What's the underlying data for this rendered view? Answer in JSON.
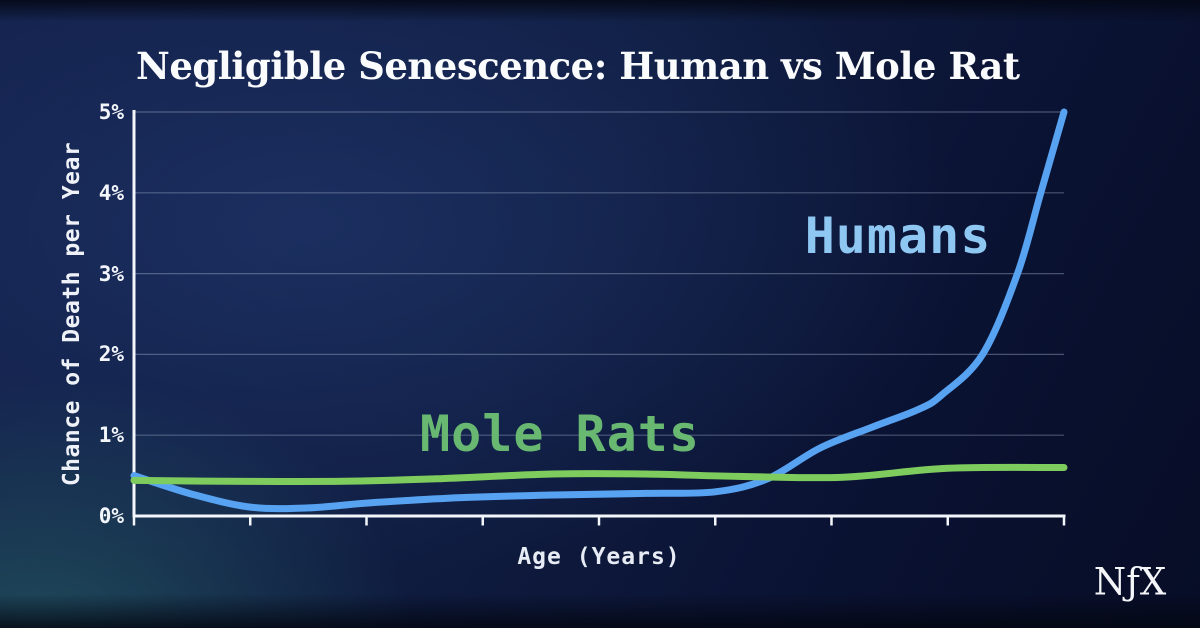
{
  "page": {
    "logo_text": "NƒX"
  },
  "chart_data": {
    "type": "line",
    "title": "Negligible Senescence: Human vs Mole Rat",
    "xlabel": "Age (Years)",
    "ylabel": "Chance of Death per Year",
    "x_range": [
      0,
      8
    ],
    "x_tick_count": 9,
    "x_tick_labels_visible": false,
    "ylim": [
      0,
      5
    ],
    "ytick_labels": [
      "0%",
      "1%",
      "2%",
      "3%",
      "4%",
      "5%"
    ],
    "grid": "horizontal",
    "legend": "inline-labels",
    "axis_color": "#f3f6fb",
    "grid_color": "rgba(168,182,208,0.4)",
    "series": [
      {
        "name": "Humans",
        "line_color": "#57a2f1",
        "label_color": "#8fc7f3",
        "x": [
          0,
          0.5,
          1.0,
          1.5,
          2.0,
          2.7,
          3.6,
          4.4,
          5.0,
          5.45,
          5.9,
          6.35,
          6.75,
          6.95,
          7.3,
          7.6,
          7.8,
          8.0
        ],
        "y": [
          0.5,
          0.27,
          0.11,
          0.1,
          0.16,
          0.22,
          0.26,
          0.28,
          0.3,
          0.46,
          0.84,
          1.1,
          1.32,
          1.5,
          2.0,
          3.0,
          4.0,
          5.0
        ]
      },
      {
        "name": "Mole Rats",
        "line_color": "#7ecb5e",
        "label_color": "#68b871",
        "x": [
          0,
          0.8,
          1.8,
          2.6,
          3.6,
          4.4,
          5.2,
          6.1,
          7.0,
          8.0
        ],
        "y": [
          0.44,
          0.43,
          0.43,
          0.46,
          0.52,
          0.52,
          0.49,
          0.48,
          0.59,
          0.6
        ]
      }
    ]
  }
}
